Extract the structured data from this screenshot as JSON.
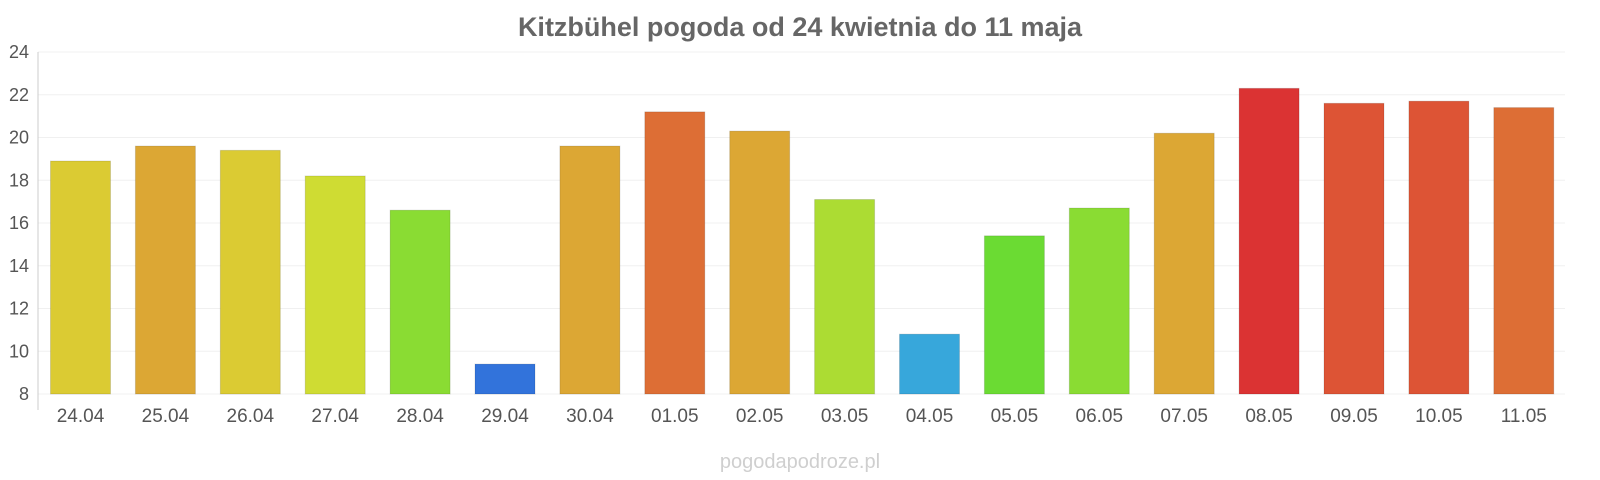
{
  "chart_data": {
    "type": "bar",
    "title": "Kitzbühel pogoda od 24 kwietnia do 11 maja",
    "xlabel": "",
    "ylabel": "",
    "ylim": [
      8,
      24
    ],
    "yticks": [
      "8",
      "10",
      "12",
      "14",
      "16",
      "18",
      "20",
      "22",
      "24"
    ],
    "grid": true,
    "categories": [
      "24.04",
      "25.04",
      "26.04",
      "27.04",
      "28.04",
      "29.04",
      "30.04",
      "01.05",
      "02.05",
      "03.05",
      "04.05",
      "05.05",
      "06.05",
      "07.05",
      "08.05",
      "09.05",
      "10.05",
      "11.05"
    ],
    "values": [
      18.9,
      19.6,
      19.4,
      18.2,
      16.6,
      9.4,
      19.6,
      21.2,
      20.3,
      17.1,
      10.8,
      15.4,
      16.7,
      20.2,
      22.3,
      21.6,
      21.7,
      21.4
    ],
    "colors": [
      "#dbcb33",
      "#dca734",
      "#dbcb33",
      "#cfdc33",
      "#8adc33",
      "#3273db",
      "#dca734",
      "#dd6e35",
      "#dca734",
      "#acdc33",
      "#37a7db",
      "#6bdb33",
      "#8adc33",
      "#dca734",
      "#db3333",
      "#dd5435",
      "#dd5435",
      "#dd6e35"
    ]
  },
  "watermark": "pogodapodroze.pl"
}
